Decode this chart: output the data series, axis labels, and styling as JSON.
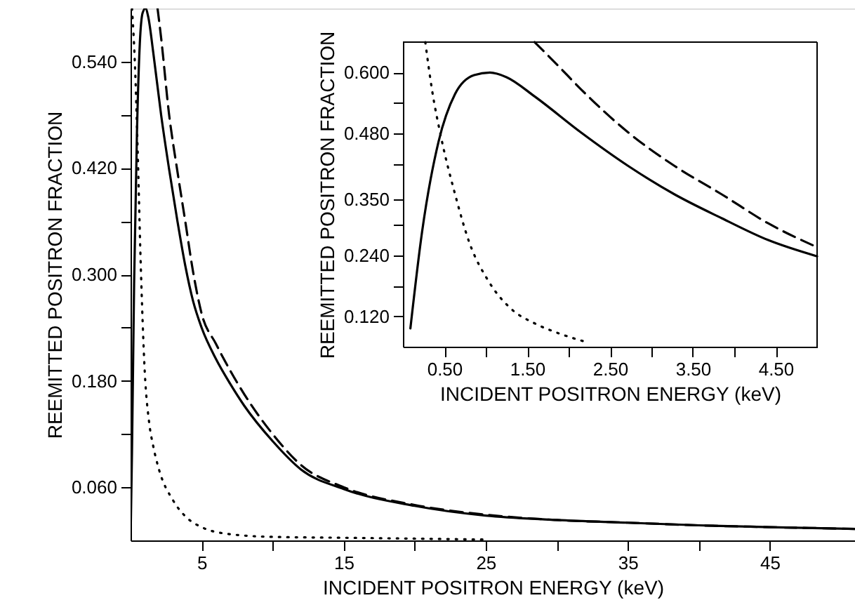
{
  "chart_data": [
    {
      "type": "line",
      "xlabel": "INCIDENT POSITRON ENERGY (keV)",
      "ylabel": "REEMITTED POSITRON FRACTION",
      "xlim": [
        0,
        51
      ],
      "ylim": [
        0,
        0.6
      ],
      "grid": false,
      "xticks": [
        5,
        {
          "value": 10,
          "label": null
        },
        15,
        {
          "value": 20,
          "label": null
        },
        25,
        {
          "value": 30,
          "label": null
        },
        35,
        {
          "value": 40,
          "label": null
        },
        45
      ],
      "yticks": [
        {
          "value": 0.06,
          "label": "0.060"
        },
        {
          "value": 0.12,
          "label": null
        },
        {
          "value": 0.18,
          "label": "0.180"
        },
        {
          "value": 0.24,
          "label": null
        },
        {
          "value": 0.3,
          "label": "0.300"
        },
        {
          "value": 0.36,
          "label": null
        },
        {
          "value": 0.42,
          "label": "0.420"
        },
        {
          "value": 0.48,
          "label": null
        },
        {
          "value": 0.54,
          "label": "0.540"
        }
      ],
      "series": [
        {
          "color": "#000000",
          "line_style": "solid",
          "x": [
            0,
            0.1,
            0.25,
            0.45,
            0.65,
            0.85,
            1.05,
            1.25,
            1.6,
            2.15,
            2.7,
            3.3,
            3.85,
            4.4,
            5,
            6,
            7,
            8,
            10,
            12,
            15,
            20,
            25,
            30,
            35,
            40,
            45,
            51
          ],
          "values": [
            0,
            0.1,
            0.29,
            0.46,
            0.56,
            0.595,
            0.6,
            0.59,
            0.55,
            0.48,
            0.42,
            0.36,
            0.31,
            0.27,
            0.24,
            0.205,
            0.177,
            0.152,
            0.112,
            0.08,
            0.058,
            0.039,
            0.028,
            0.023,
            0.02,
            0.017,
            0.015,
            0.013
          ]
        },
        {
          "color": "#000000",
          "line_style": "dashed",
          "x": [
            1.9,
            2.15,
            2.7,
            3.3,
            3.85,
            4.4,
            5,
            6,
            7,
            8,
            10,
            12,
            15,
            20,
            25,
            30,
            35,
            40,
            45,
            51
          ],
          "values": [
            0.6,
            0.567,
            0.482,
            0.416,
            0.36,
            0.303,
            0.256,
            0.222,
            0.192,
            0.165,
            0.12,
            0.085,
            0.06,
            0.04,
            0.029,
            0.023,
            0.02,
            0.017,
            0.015,
            0.013
          ]
        },
        {
          "color": "#000000",
          "line_style": "dotted",
          "x": [
            0.1,
            0.3,
            0.5,
            0.7,
            1.0,
            1.3,
            1.6,
            2,
            3,
            4,
            5,
            7,
            10,
            15,
            20,
            25
          ],
          "values": [
            0.6,
            0.54,
            0.44,
            0.32,
            0.19,
            0.134,
            0.106,
            0.08,
            0.045,
            0.025,
            0.015,
            0.007,
            0.004,
            0.003,
            0.002,
            0.001
          ]
        }
      ]
    },
    {
      "type": "line",
      "xlabel": "INCIDENT POSITRON ENERGY (keV)",
      "ylabel": "REEMITTED POSITRON FRACTION",
      "xlim": [
        0,
        5
      ],
      "ylim": [
        0.06,
        0.66
      ],
      "grid": false,
      "xticks": [
        {
          "value": 0.5,
          "label": "0.50"
        },
        {
          "value": 1,
          "label": null
        },
        {
          "value": 1.5,
          "label": "1.50"
        },
        {
          "value": 2,
          "label": null
        },
        {
          "value": 2.5,
          "label": "2.50"
        },
        {
          "value": 3,
          "label": null
        },
        {
          "value": 3.5,
          "label": "3.50"
        },
        {
          "value": 4,
          "label": null
        },
        {
          "value": 4.5,
          "label": "4.50"
        }
      ],
      "yticks": [
        {
          "value": 0.12,
          "label": "0.120"
        },
        {
          "value": 0.18,
          "label": null
        },
        {
          "value": 0.24,
          "label": "0.240"
        },
        {
          "value": 0.3,
          "label": null
        },
        {
          "value": 0.35,
          "label": "0.350"
        },
        {
          "value": 0.42,
          "label": null
        },
        {
          "value": 0.48,
          "label": "0.480"
        },
        {
          "value": 0.54,
          "label": null
        },
        {
          "value": 0.6,
          "label": "0.600"
        }
      ],
      "series": [
        {
          "color": "#000000",
          "line_style": "solid",
          "x": [
            0.09,
            0.23,
            0.43,
            0.63,
            0.86,
            1.05,
            1.25,
            1.59,
            2.15,
            2.72,
            3.28,
            3.85,
            4.41,
            5.0
          ],
          "values": [
            0.096,
            0.285,
            0.464,
            0.558,
            0.595,
            0.6,
            0.591,
            0.553,
            0.482,
            0.416,
            0.36,
            0.313,
            0.27,
            0.238
          ]
        },
        {
          "color": "#000000",
          "line_style": "dashed",
          "x": [
            1.59,
            1.87,
            2.15,
            2.72,
            3.28,
            3.85,
            4.41,
            5.0
          ],
          "values": [
            0.66,
            0.614,
            0.567,
            0.482,
            0.416,
            0.36,
            0.303,
            0.256
          ]
        },
        {
          "color": "#000000",
          "line_style": "dotted",
          "x": [
            0.27,
            0.35,
            0.46,
            0.63,
            0.8,
            1.03,
            1.31,
            1.59,
            1.87,
            2.24
          ],
          "values": [
            0.66,
            0.567,
            0.473,
            0.36,
            0.266,
            0.19,
            0.134,
            0.106,
            0.087,
            0.068
          ]
        }
      ]
    }
  ]
}
